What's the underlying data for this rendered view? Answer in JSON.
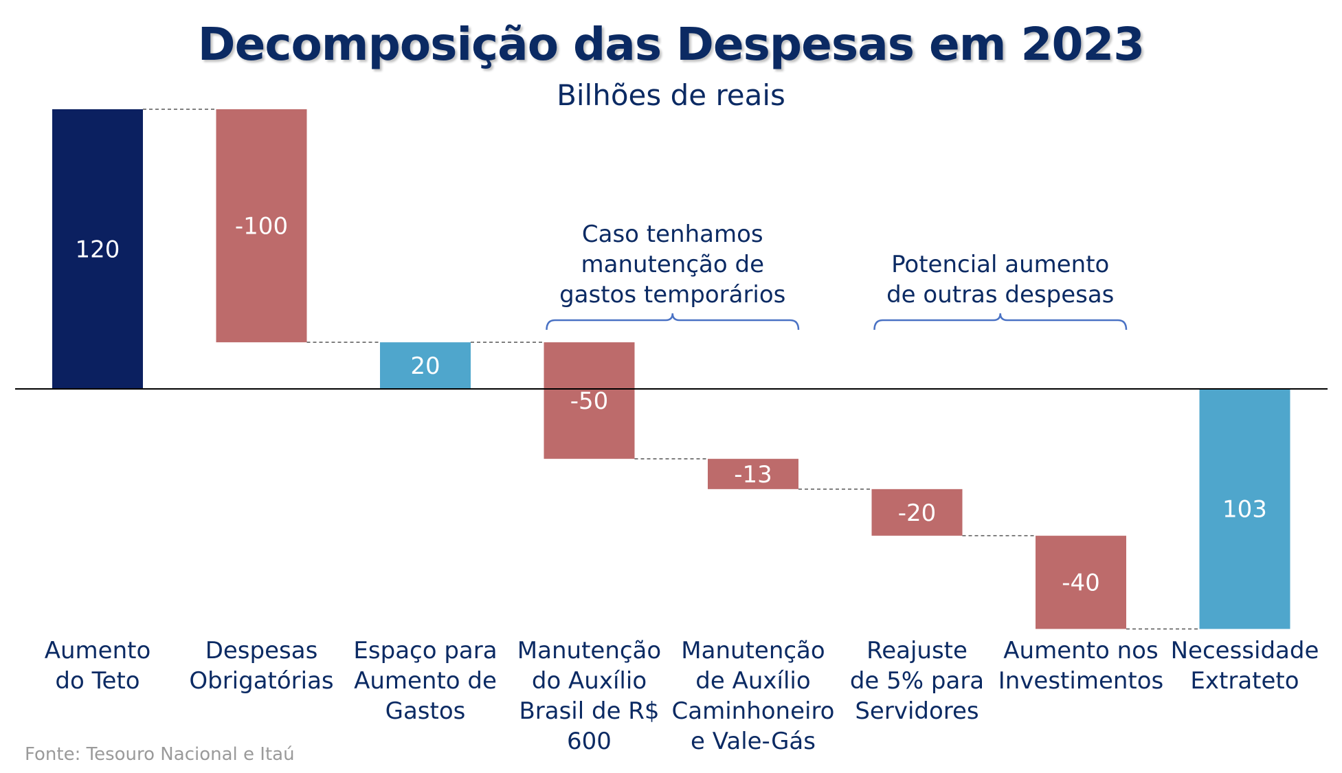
{
  "chart_data": {
    "type": "waterfall",
    "title": "Decomposição das Despesas em 2023",
    "subtitle": "Bilhões de reais",
    "categories": [
      [
        "Aumento",
        "do Teto"
      ],
      [
        "Despesas",
        "Obrigatórias"
      ],
      [
        "Espaço para",
        "Aumento de",
        "Gastos"
      ],
      [
        "Manutenção",
        "do Auxílio",
        "Brasil de R$",
        "600"
      ],
      [
        "Manutenção",
        "de Auxílio",
        "Caminhoneiro",
        "e Vale-Gás"
      ],
      [
        "Reajuste",
        "de 5% para",
        "Servidores"
      ],
      [
        "Aumento nos",
        "Investimentos"
      ],
      [
        "Necessidade",
        "Extrateto"
      ]
    ],
    "values": [
      120,
      -100,
      20,
      -50,
      -13,
      -20,
      -40,
      103
    ],
    "value_labels": [
      "120",
      "-100",
      "20",
      "-50",
      "-13",
      "-20",
      "-40",
      "103"
    ],
    "kinds": [
      "total",
      "delta",
      "subtotal",
      "delta",
      "delta",
      "delta",
      "delta",
      "total_negative"
    ],
    "colors": {
      "total": "#0b2060",
      "negative": "#bd6b6b",
      "subtotal": "#4fa6cc",
      "axis": "#000000",
      "connector": "#555555",
      "bracket": "#4a72c4",
      "text": "#0b2a63"
    },
    "annotations": [
      {
        "lines": [
          "Caso tenhamos",
          "manutenção de",
          "gastos temporários"
        ],
        "span": [
          3,
          4
        ]
      },
      {
        "lines": [
          "Potencial aumento",
          "de outras despesas"
        ],
        "span": [
          5,
          6
        ]
      }
    ],
    "ylim": [
      -103,
      120
    ]
  },
  "source": "Fonte: Tesouro Nacional e Itaú"
}
